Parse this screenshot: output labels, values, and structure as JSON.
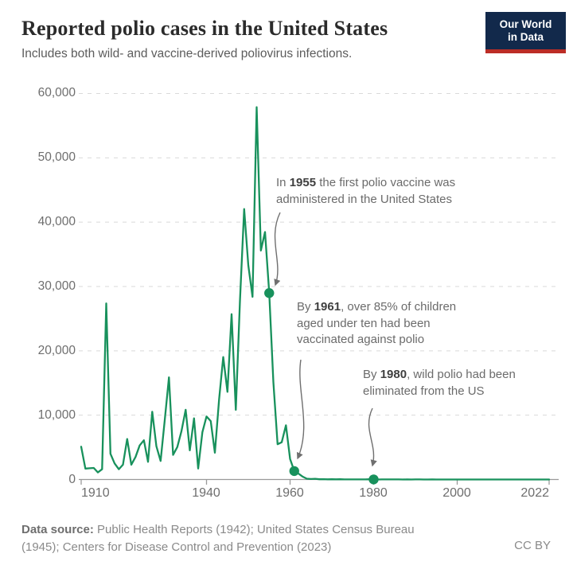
{
  "header": {
    "title": "Reported polio cases in the United States",
    "subtitle": "Includes both wild- and vaccine-derived poliovirus infections.",
    "logo_line1": "Our World",
    "logo_line2": "in Data",
    "logo_bg": "#12294b",
    "logo_bar": "#bc2d26"
  },
  "footer": {
    "source_label": "Data source:",
    "source_text": " Public Health Reports (1942); United States Census Bureau (1945); Centers for Disease Control and Prevention (2023)",
    "license": "CC BY"
  },
  "chart_data": {
    "type": "line",
    "title": "Reported polio cases in the United States",
    "xlabel": "",
    "ylabel": "",
    "xlim": [
      1910,
      2022
    ],
    "ylim": [
      0,
      60000
    ],
    "grid": "horizontal-dashed",
    "legend_position": "none",
    "line_color": "#18915c",
    "arrow_color": "#6f6f6f",
    "y_axis": {
      "tick_values": [
        60000,
        50000,
        40000,
        30000,
        20000,
        10000,
        0
      ],
      "tick_labels": [
        "60,000",
        "50,000",
        "40,000",
        "30,000",
        "20,000",
        "10,000",
        "0"
      ]
    },
    "x_axis": {
      "tick_years": [
        1910,
        1940,
        1960,
        1980,
        2000,
        2022
      ],
      "tick_labels": [
        "1910",
        "1940",
        "1960",
        "1980",
        "2000",
        "2022"
      ]
    },
    "points": [
      [
        1910,
        5100
      ],
      [
        1911,
        1700
      ],
      [
        1912,
        1750
      ],
      [
        1913,
        1800
      ],
      [
        1914,
        1100
      ],
      [
        1915,
        1600
      ],
      [
        1916,
        27363
      ],
      [
        1917,
        4000
      ],
      [
        1918,
        2500
      ],
      [
        1919,
        1600
      ],
      [
        1920,
        2300
      ],
      [
        1921,
        6300
      ],
      [
        1922,
        2300
      ],
      [
        1923,
        3500
      ],
      [
        1924,
        5300
      ],
      [
        1925,
        6100
      ],
      [
        1926,
        2750
      ],
      [
        1927,
        10533
      ],
      [
        1928,
        5169
      ],
      [
        1929,
        2882
      ],
      [
        1930,
        9220
      ],
      [
        1931,
        15872
      ],
      [
        1932,
        3820
      ],
      [
        1933,
        5043
      ],
      [
        1934,
        7510
      ],
      [
        1935,
        10839
      ],
      [
        1936,
        4523
      ],
      [
        1937,
        9514
      ],
      [
        1938,
        1705
      ],
      [
        1939,
        7343
      ],
      [
        1940,
        9804
      ],
      [
        1941,
        9086
      ],
      [
        1942,
        4167
      ],
      [
        1943,
        12450
      ],
      [
        1944,
        19029
      ],
      [
        1945,
        13624
      ],
      [
        1946,
        25698
      ],
      [
        1947,
        10827
      ],
      [
        1948,
        27726
      ],
      [
        1949,
        42033
      ],
      [
        1950,
        33300
      ],
      [
        1951,
        28386
      ],
      [
        1952,
        57879
      ],
      [
        1953,
        35592
      ],
      [
        1954,
        38476
      ],
      [
        1955,
        28985
      ],
      [
        1956,
        15140
      ],
      [
        1957,
        5485
      ],
      [
        1958,
        5787
      ],
      [
        1959,
        8425
      ],
      [
        1960,
        3190
      ],
      [
        1961,
        1312
      ],
      [
        1962,
        910
      ],
      [
        1963,
        449
      ],
      [
        1964,
        122
      ],
      [
        1965,
        72
      ],
      [
        1966,
        113
      ],
      [
        1967,
        41
      ],
      [
        1968,
        53
      ],
      [
        1969,
        20
      ],
      [
        1970,
        33
      ],
      [
        1971,
        21
      ],
      [
        1972,
        31
      ],
      [
        1973,
        8
      ],
      [
        1974,
        7
      ],
      [
        1975,
        8
      ],
      [
        1976,
        14
      ],
      [
        1977,
        18
      ],
      [
        1978,
        15
      ],
      [
        1979,
        34
      ],
      [
        1980,
        9
      ],
      [
        1981,
        6
      ],
      [
        1982,
        8
      ],
      [
        1983,
        15
      ],
      [
        1984,
        8
      ],
      [
        1985,
        7
      ],
      [
        1986,
        10
      ],
      [
        1987,
        6
      ],
      [
        1988,
        9
      ],
      [
        1989,
        5
      ],
      [
        1990,
        7
      ],
      [
        1991,
        10
      ],
      [
        1992,
        6
      ],
      [
        1993,
        3
      ],
      [
        1994,
        8
      ],
      [
        1995,
        6
      ],
      [
        1996,
        5
      ],
      [
        1997,
        2
      ],
      [
        1998,
        1
      ],
      [
        1999,
        0
      ],
      [
        2000,
        0
      ],
      [
        2001,
        0
      ],
      [
        2002,
        0
      ],
      [
        2003,
        0
      ],
      [
        2004,
        0
      ],
      [
        2005,
        1
      ],
      [
        2006,
        0
      ],
      [
        2007,
        0
      ],
      [
        2008,
        0
      ],
      [
        2009,
        1
      ],
      [
        2010,
        0
      ],
      [
        2011,
        0
      ],
      [
        2012,
        0
      ],
      [
        2013,
        1
      ],
      [
        2014,
        1
      ],
      [
        2015,
        0
      ],
      [
        2016,
        0
      ],
      [
        2017,
        0
      ],
      [
        2018,
        0
      ],
      [
        2019,
        0
      ],
      [
        2020,
        0
      ],
      [
        2021,
        0
      ],
      [
        2022,
        1
      ]
    ],
    "annotations": [
      {
        "pre": "In ",
        "year": "1955",
        "text": " the first polio vaccine was administered in the United States",
        "marker_year": 1955,
        "marker_value": 28985
      },
      {
        "pre": "By ",
        "year": "1961",
        "text": ", over 85% of children aged under ten had been vaccinated against polio",
        "marker_year": 1961,
        "marker_value": 1312
      },
      {
        "pre": "By ",
        "year": "1980",
        "text": ", wild polio had been eliminated from the US",
        "marker_year": 1980,
        "marker_value": 9
      }
    ]
  }
}
